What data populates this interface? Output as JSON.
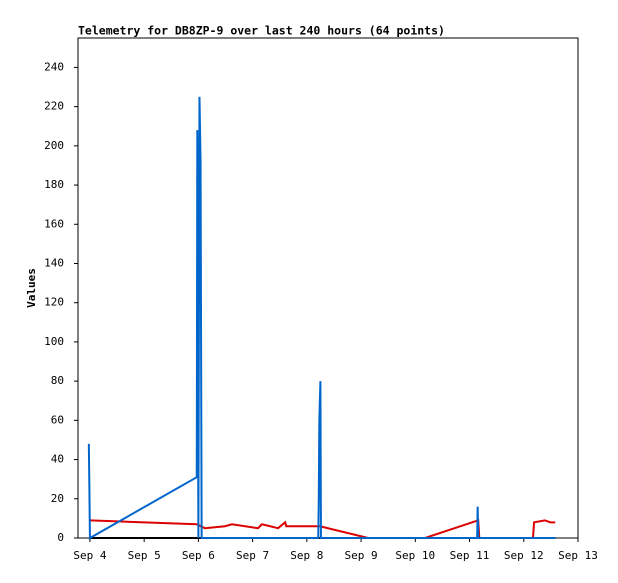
{
  "chart_data": {
    "type": "line",
    "title": "Telemetry for DB8ZP-9 over last 240 hours (64 points)",
    "y_label": "Values",
    "xlim": [
      3.78,
      13
    ],
    "ylim": [
      0,
      255
    ],
    "xticks": [
      {
        "value": 4,
        "label": "Sep 4"
      },
      {
        "value": 5,
        "label": "Sep 5"
      },
      {
        "value": 6,
        "label": "Sep 6"
      },
      {
        "value": 7,
        "label": "Sep 7"
      },
      {
        "value": 8,
        "label": "Sep 8"
      },
      {
        "value": 9,
        "label": "Sep 9"
      },
      {
        "value": 10,
        "label": "Sep 10"
      },
      {
        "value": 11,
        "label": "Sep 11"
      },
      {
        "value": 12,
        "label": "Sep 12"
      },
      {
        "value": 13,
        "label": "Sep 13"
      }
    ],
    "yticks": [
      0,
      20,
      40,
      60,
      80,
      100,
      120,
      140,
      160,
      180,
      200,
      220,
      240
    ],
    "series": [
      {
        "color": "#000000",
        "x": [
          4.0,
          12.58
        ],
        "values": [
          0,
          0
        ]
      },
      {
        "color": "#dd0000",
        "x": [
          4.0,
          5.97,
          6.12,
          6.49,
          6.62,
          7.1,
          7.17,
          7.47,
          7.6,
          7.62,
          8.24,
          9.13,
          10.18,
          11.16,
          11.18,
          12.17,
          12.19,
          12.39,
          12.49,
          12.58
        ],
        "values": [
          9,
          7,
          5,
          6,
          7,
          5,
          7,
          5,
          8,
          6,
          6,
          0,
          0,
          9,
          0,
          0,
          8,
          9,
          8,
          8
        ]
      },
      {
        "color": "#0066cc",
        "x": [
          3.98,
          3.99,
          4.0,
          5.97,
          5.98,
          6.0,
          6.02,
          6.04,
          6.06,
          8.21,
          8.22,
          8.23,
          8.25,
          8.26,
          11.14,
          11.15,
          11.16,
          12.58
        ],
        "values": [
          48,
          25,
          0,
          31,
          208,
          0,
          225,
          192,
          0,
          0,
          20,
          60,
          80,
          0,
          0,
          16,
          0,
          0
        ]
      }
    ]
  }
}
